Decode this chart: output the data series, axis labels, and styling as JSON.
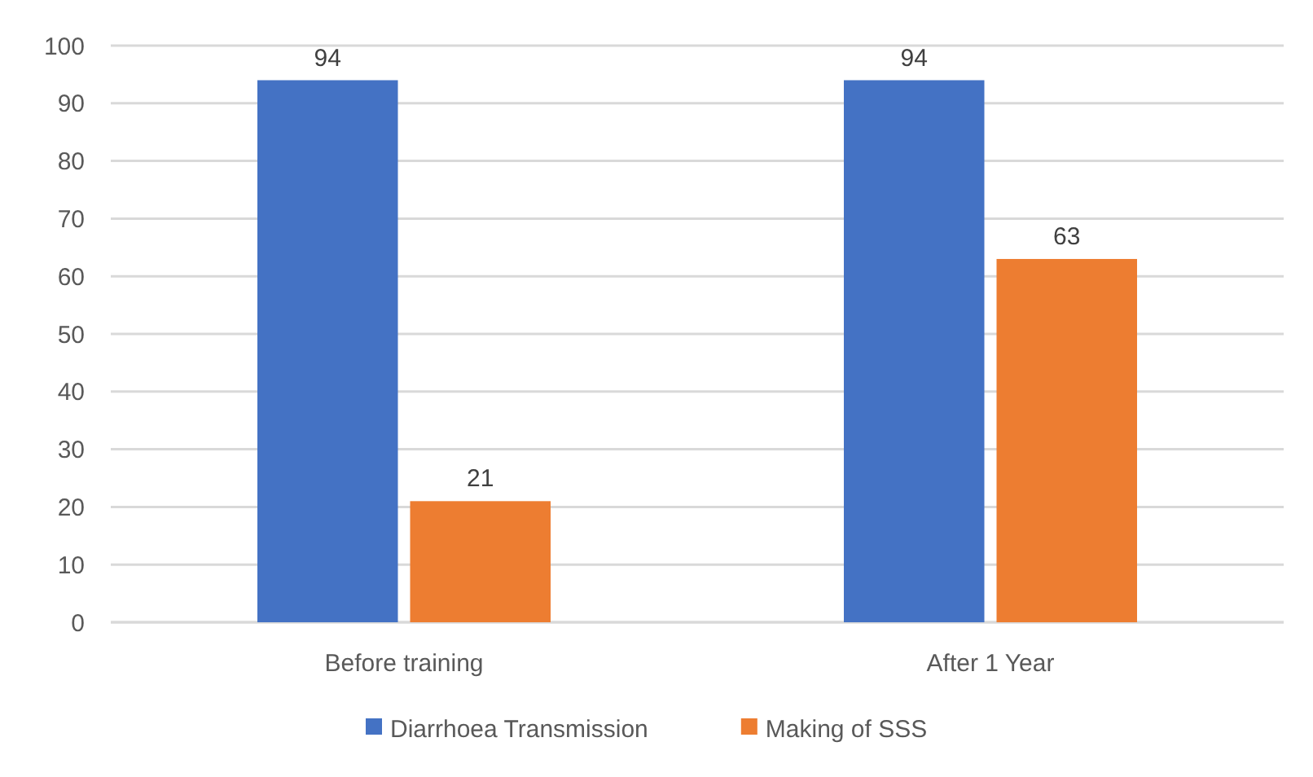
{
  "chart_data": {
    "type": "bar",
    "categories": [
      "Before training",
      "After 1 Year"
    ],
    "series": [
      {
        "name": "Diarrhoea Transmission",
        "color": "#4472c4",
        "values": [
          94,
          94
        ]
      },
      {
        "name": "Making of SSS",
        "color": "#ed7d31",
        "values": [
          21,
          63
        ]
      }
    ],
    "ylim": [
      0,
      100
    ],
    "yticks": [
      0,
      10,
      20,
      30,
      40,
      50,
      60,
      70,
      80,
      90,
      100
    ],
    "grid": "y",
    "legend": "bottom",
    "data_labels": true
  }
}
